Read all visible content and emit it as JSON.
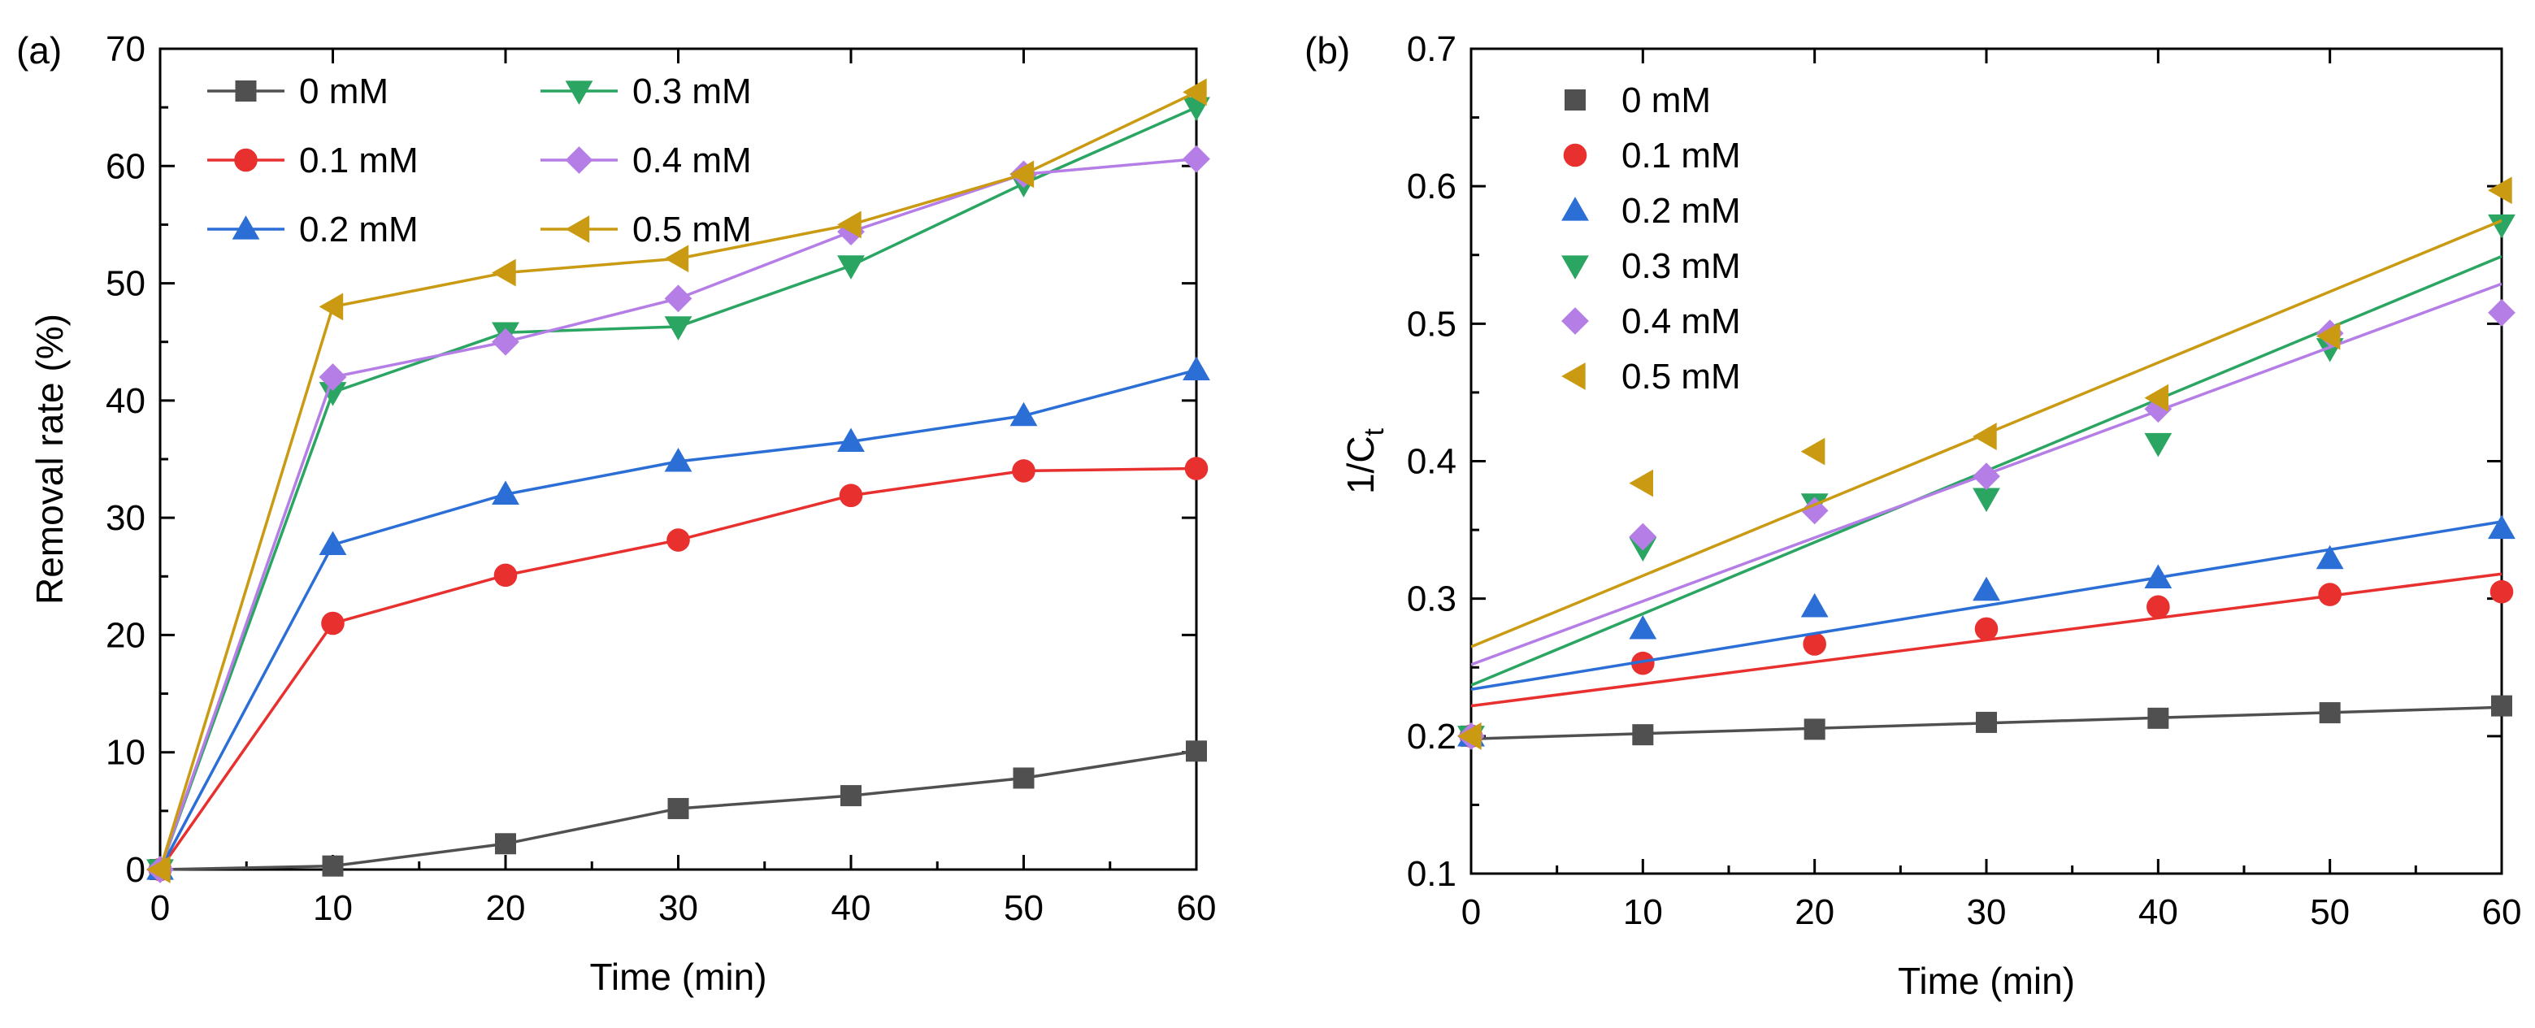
{
  "chart_data": [
    {
      "panel_label": "(a)",
      "type": "line",
      "xlabel": "Time (min)",
      "ylabel": "Removal rate (%)",
      "xlim": [
        0,
        60
      ],
      "ylim": [
        0,
        70
      ],
      "xticks": [
        "0",
        "10",
        "20",
        "30",
        "40",
        "50",
        "60"
      ],
      "yticks": [
        "0",
        "10",
        "20",
        "30",
        "40",
        "50",
        "60",
        "70"
      ],
      "legend_position": "top-left",
      "x": [
        0,
        10,
        20,
        30,
        40,
        50,
        60
      ],
      "series": [
        {
          "name": "0 mM",
          "marker": "square",
          "color": "#505050",
          "values": [
            0,
            0.3,
            2.2,
            5.2,
            6.3,
            7.8,
            10.1
          ]
        },
        {
          "name": "0.1 mM",
          "marker": "circle",
          "color": "#e8302f",
          "values": [
            0,
            21.0,
            25.1,
            28.1,
            31.9,
            34.0,
            34.2
          ]
        },
        {
          "name": "0.2 mM",
          "marker": "triangle-up",
          "color": "#2b6fd6",
          "values": [
            0,
            27.7,
            32.0,
            34.8,
            36.5,
            38.7,
            42.6
          ]
        },
        {
          "name": "0.3 mM",
          "marker": "triangle-down",
          "color": "#2aa562",
          "values": [
            0,
            40.7,
            45.8,
            46.3,
            51.5,
            58.5,
            65.0
          ]
        },
        {
          "name": "0.4 mM",
          "marker": "diamond",
          "color": "#b57ee6",
          "values": [
            0,
            42.0,
            45.0,
            48.7,
            54.4,
            59.3,
            60.6
          ]
        },
        {
          "name": "0.5 mM",
          "marker": "triangle-left",
          "color": "#c99a12",
          "values": [
            0,
            48.0,
            50.9,
            52.1,
            55.0,
            59.3,
            66.3
          ]
        }
      ]
    },
    {
      "panel_label": "(b)",
      "type": "scatter",
      "xlabel": "Time (min)",
      "ylabel": "1/C",
      "ylabel_sub": "t",
      "xlim": [
        0,
        60
      ],
      "ylim": [
        0.1,
        0.7
      ],
      "xticks": [
        "0",
        "10",
        "20",
        "30",
        "40",
        "50",
        "60"
      ],
      "yticks": [
        "0.1",
        "0.2",
        "0.3",
        "0.4",
        "0.5",
        "0.6",
        "0.7"
      ],
      "legend_position": "top-left",
      "x": [
        0,
        10,
        20,
        30,
        40,
        50,
        60
      ],
      "series": [
        {
          "name": "0 mM",
          "marker": "square",
          "color": "#505050",
          "values": [
            0.2,
            0.201,
            0.205,
            0.21,
            0.213,
            0.217,
            0.222
          ],
          "fit": [
            0.198,
            0.221
          ]
        },
        {
          "name": "0.1 mM",
          "marker": "circle",
          "color": "#e8302f",
          "values": [
            0.2,
            0.253,
            0.267,
            0.278,
            0.294,
            0.303,
            0.305
          ],
          "fit": [
            0.222,
            0.318
          ]
        },
        {
          "name": "0.2 mM",
          "marker": "triangle-up",
          "color": "#2b6fd6",
          "values": [
            0.2,
            0.278,
            0.294,
            0.306,
            0.315,
            0.329,
            0.351
          ],
          "fit": [
            0.234,
            0.356
          ]
        },
        {
          "name": "0.3 mM",
          "marker": "triangle-down",
          "color": "#2aa562",
          "values": [
            0.2,
            0.337,
            0.369,
            0.373,
            0.413,
            0.482,
            0.572
          ],
          "fit": [
            0.237,
            0.549
          ]
        },
        {
          "name": "0.4 mM",
          "marker": "diamond",
          "color": "#b57ee6",
          "values": [
            0.2,
            0.345,
            0.364,
            0.389,
            0.438,
            0.493,
            0.508
          ],
          "fit": [
            0.252,
            0.529
          ]
        },
        {
          "name": "0.5 mM",
          "marker": "triangle-left",
          "color": "#c99a12",
          "values": [
            0.2,
            0.384,
            0.407,
            0.418,
            0.446,
            0.491,
            0.597
          ],
          "fit": [
            0.265,
            0.575
          ]
        }
      ]
    }
  ]
}
